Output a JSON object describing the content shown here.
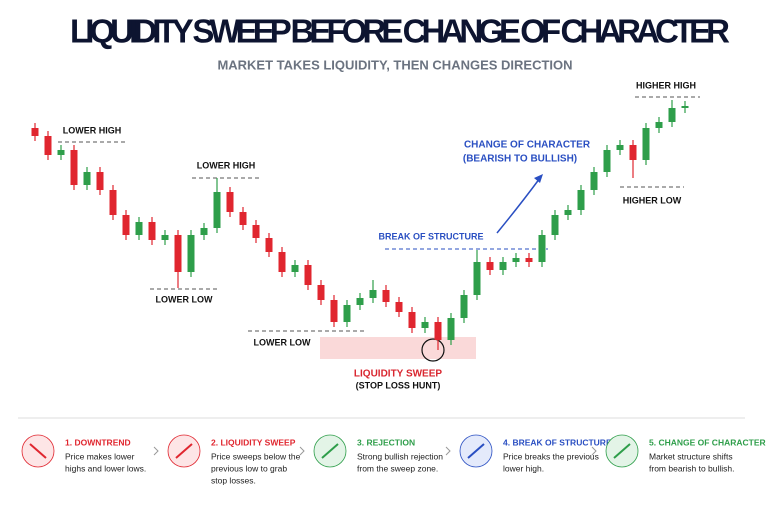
{
  "chart_data": {
    "type": "candlestick",
    "title": "LIQUIDITY SWEEP BEFORE CHANGE OF CHARACTER",
    "subtitle": "MARKET TAKES LIQUIDITY, THEN CHANGES DIRECTION",
    "annotations": {
      "lower_high_1": "LOWER HIGH",
      "lower_high_2": "LOWER HIGH",
      "lower_low_1": "LOWER LOW",
      "lower_low_2": "LOWER LOW",
      "sweep": "LIQUIDITY SWEEP",
      "sweep_sub": "(STOP LOSS HUNT)",
      "bos": "BREAK OF STRUCTURE",
      "choch": "CHANGE OF CHARACTER",
      "choch_sub": "(BEARISH TO BULLISH)",
      "higher_high": "HIGHER HIGH",
      "higher_low": "HIGHER LOW"
    },
    "up_color": "#2e9e4a",
    "down_color": "#e0262f",
    "open": [
      272,
      264,
      245,
      250,
      215,
      228,
      210,
      185,
      165,
      178,
      160,
      165,
      128,
      165,
      172,
      208,
      188,
      175,
      162,
      148,
      128,
      135,
      115,
      100,
      78,
      95,
      102,
      110,
      98,
      88,
      72,
      78,
      60,
      82,
      105,
      138,
      130,
      138,
      142,
      138,
      165,
      185,
      190,
      210,
      228,
      250,
      255,
      240,
      272,
      278,
      292
    ],
    "high": [
      277,
      269,
      255,
      255,
      233,
      233,
      215,
      190,
      183,
      183,
      170,
      170,
      170,
      177,
      222,
      213,
      193,
      180,
      167,
      153,
      140,
      140,
      120,
      105,
      100,
      107,
      120,
      115,
      103,
      93,
      83,
      83,
      87,
      110,
      150,
      143,
      143,
      147,
      147,
      170,
      190,
      195,
      215,
      233,
      255,
      260,
      260,
      277,
      283,
      300,
      299
    ],
    "low": [
      259,
      240,
      240,
      210,
      210,
      205,
      180,
      160,
      160,
      155,
      155,
      112,
      123,
      160,
      167,
      183,
      170,
      157,
      143,
      123,
      123,
      110,
      95,
      73,
      73,
      90,
      97,
      93,
      83,
      67,
      67,
      50,
      55,
      77,
      100,
      125,
      125,
      133,
      133,
      133,
      160,
      180,
      185,
      205,
      223,
      245,
      222,
      235,
      267,
      273,
      287
    ],
    "close": [
      264,
      245,
      250,
      215,
      228,
      210,
      185,
      165,
      178,
      160,
      165,
      128,
      165,
      172,
      208,
      188,
      175,
      162,
      148,
      128,
      135,
      115,
      100,
      78,
      95,
      102,
      110,
      98,
      88,
      72,
      78,
      60,
      82,
      105,
      138,
      130,
      138,
      142,
      138,
      165,
      185,
      190,
      210,
      228,
      250,
      255,
      240,
      272,
      278,
      292,
      294
    ]
  },
  "steps": [
    {
      "title": "1. DOWNTREND",
      "text": [
        "Price makes lower",
        "highs and lower lows."
      ]
    },
    {
      "title": "2. LIQUIDITY SWEEP",
      "text": [
        "Price sweeps below the",
        "previous low to grab",
        "stop losses."
      ]
    },
    {
      "title": "3. REJECTION",
      "text": [
        "Strong bullish rejection",
        "from the sweep zone."
      ]
    },
    {
      "title": "4. BREAK OF STRUCTURE",
      "text": [
        "Price breaks the previous",
        "lower high."
      ]
    },
    {
      "title": "5. CHANGE OF CHARACTER",
      "text": [
        "Market structure shifts",
        "from bearish to bullish."
      ]
    }
  ]
}
